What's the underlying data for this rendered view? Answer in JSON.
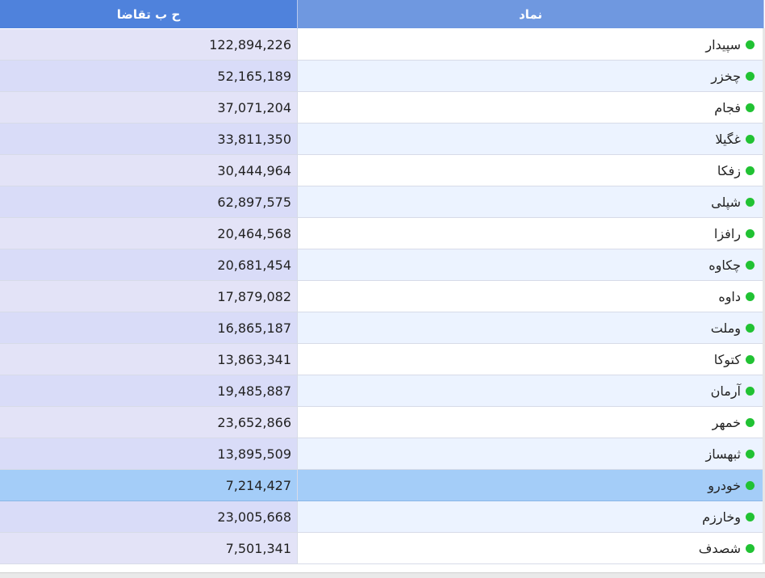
{
  "header": {
    "demand_label": "ح ب تقاضا",
    "symbol_label": "نماد"
  },
  "status_color": "#21c233",
  "selected_symbol": "خودرو",
  "rows": [
    {
      "symbol": "سپیدار",
      "demand": "122,894,226"
    },
    {
      "symbol": "چخزر",
      "demand": "52,165,189"
    },
    {
      "symbol": "فجام",
      "demand": "37,071,204"
    },
    {
      "symbol": "غگیلا",
      "demand": "33,811,350"
    },
    {
      "symbol": "زفکا",
      "demand": "30,444,964"
    },
    {
      "symbol": "شپلی",
      "demand": "62,897,575"
    },
    {
      "symbol": "رافزا",
      "demand": "20,464,568"
    },
    {
      "symbol": "چکاوه",
      "demand": "20,681,454"
    },
    {
      "symbol": "داوه",
      "demand": "17,879,082"
    },
    {
      "symbol": "وملت",
      "demand": "16,865,187"
    },
    {
      "symbol": "کتوکا",
      "demand": "13,863,341"
    },
    {
      "symbol": "آرمان",
      "demand": "19,485,887"
    },
    {
      "symbol": "خمهر",
      "demand": "23,652,866"
    },
    {
      "symbol": "ثبهساز",
      "demand": "13,895,509"
    },
    {
      "symbol": "خودرو",
      "demand": "7,214,427"
    },
    {
      "symbol": "وخارزم",
      "demand": "23,005,668"
    },
    {
      "symbol": "شصدف",
      "demand": "7,501,341"
    }
  ]
}
